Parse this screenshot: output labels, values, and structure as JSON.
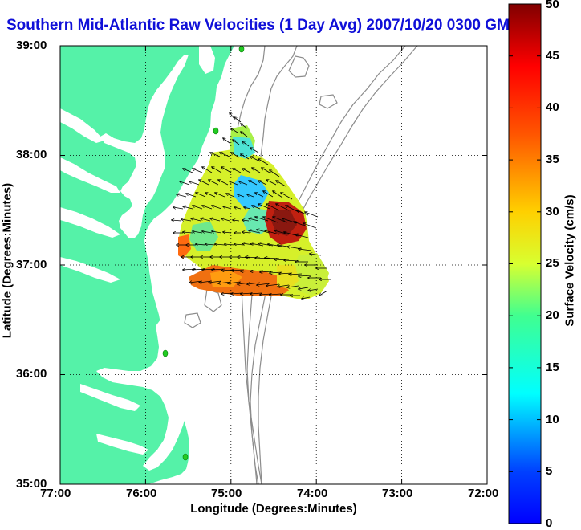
{
  "title": "Southern Mid-Atlantic Raw Velocities (1 Day Avg) 2007/10/20 0300 GMT",
  "xlabel": "Longitude (Degrees:Minutes)",
  "ylabel": "Latitude (Degrees:Minutes)",
  "colorbar_label": "Surface Velocity (cm/s)",
  "x_ticks": [
    "77:00",
    "76:00",
    "75:00",
    "74:00",
    "73:00",
    "72:00"
  ],
  "y_ticks": [
    "39:00",
    "38:00",
    "37:00",
    "36:00",
    "35:00"
  ],
  "colorbar_ticks": [
    "0",
    "5",
    "10",
    "15",
    "20",
    "25",
    "30",
    "35",
    "40",
    "45",
    "50"
  ],
  "colors": {
    "land": "#55f2a8",
    "title": "#1010d8",
    "bathymetry": "#8c8c8c",
    "arrow": "#000000",
    "station": "#22cc22"
  },
  "chart_data": {
    "type": "heatmap",
    "title": "Southern Mid-Atlantic Raw Velocities (1 Day Avg) 2007/10/20 0300 GMT",
    "xlabel": "Longitude (Degrees:Minutes)",
    "ylabel": "Latitude (Degrees:Minutes)",
    "xlim": [
      "77:00 W",
      "72:00 W"
    ],
    "ylim": [
      "35:00 N",
      "39:00 N"
    ],
    "grid": true,
    "colorbar": {
      "label": "Surface Velocity (cm/s)",
      "range": [
        0,
        50
      ],
      "colormap": "jet"
    },
    "station_markers": [
      {
        "lon": -74.87,
        "lat": 38.96
      },
      {
        "lon": -75.15,
        "lat": 38.21
      },
      {
        "lon": -75.97,
        "lat": 36.19
      },
      {
        "lon": -75.53,
        "lat": 35.24
      }
    ]
  }
}
